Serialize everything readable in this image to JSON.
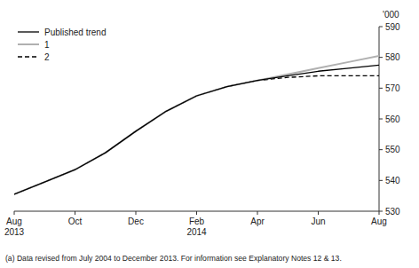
{
  "chart_data": {
    "type": "line",
    "categories": [
      "Aug\n2013",
      null,
      "Oct",
      null,
      "Dec",
      null,
      "Feb\n2014",
      null,
      "Apr",
      null,
      "Jun",
      null,
      "Aug"
    ],
    "series": [
      {
        "name": "Published trend",
        "color": "#000000",
        "line_style": "solid",
        "values": [
          535.5,
          539.5,
          543.5,
          549.0,
          556.0,
          562.5,
          567.5,
          570.5,
          572.5,
          574.0,
          575.5,
          576.5,
          577.5
        ]
      },
      {
        "name": "1",
        "color": "#b0b0b0",
        "line_style": "solid",
        "values": [
          535.5,
          539.5,
          543.5,
          549.0,
          556.0,
          562.5,
          567.5,
          570.5,
          572.5,
          574.5,
          576.5,
          578.5,
          580.5
        ]
      },
      {
        "name": "2",
        "color": "#000000",
        "line_style": "dashed",
        "values": [
          535.5,
          539.5,
          543.5,
          549.0,
          556.0,
          562.5,
          567.5,
          570.5,
          572.5,
          573.5,
          574.0,
          574.0,
          574.0
        ]
      }
    ],
    "ylabel": "'000",
    "annotations": [
      "(a) Data revised from July 2004 to December 2013. For information see Explanatory Notes 12 & 13."
    ],
    "ylim": [
      530,
      590
    ],
    "yticks": [
      530,
      540,
      550,
      560,
      570,
      580,
      590
    ],
    "grid": false,
    "legend": "upper left"
  }
}
